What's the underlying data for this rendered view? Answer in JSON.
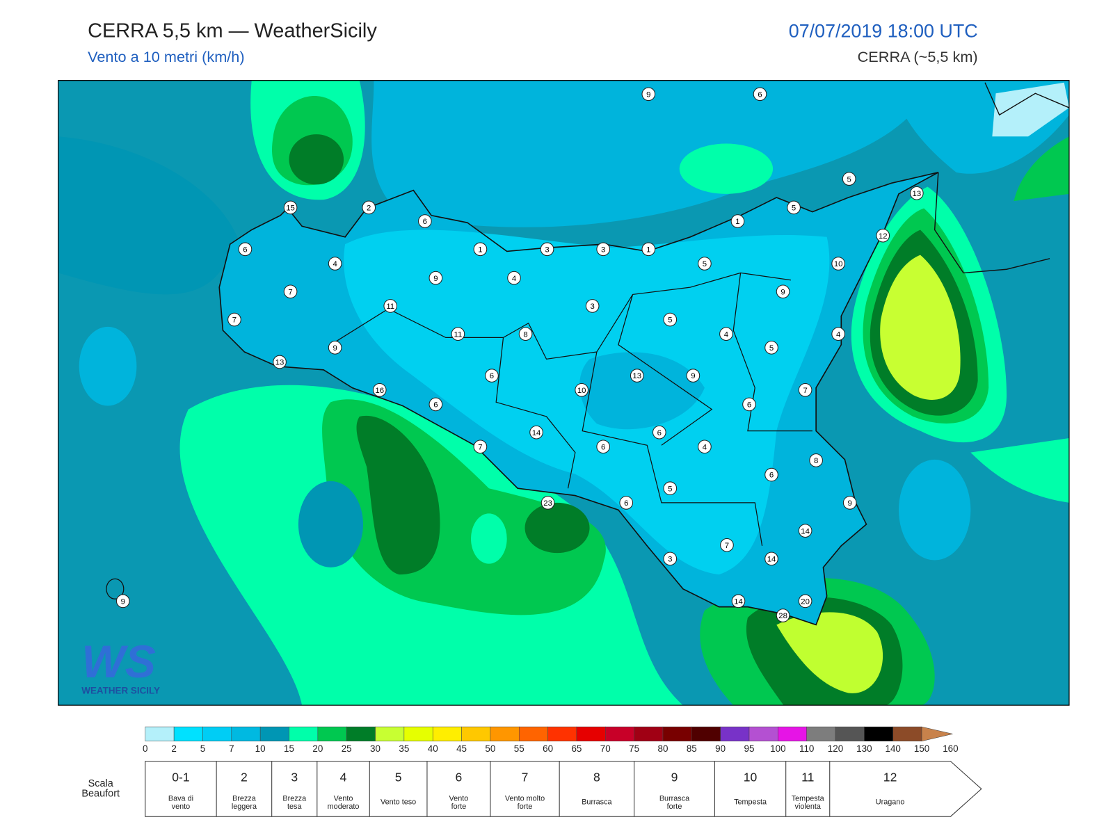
{
  "header": {
    "title": "CERRA 5,5 km — WeatherSicily",
    "subtitle": "Vento a 10 metri (km/h)",
    "datetime": "07/07/2019 18:00 UTC",
    "model": "CERRA (~5,5 km)"
  },
  "stations": [
    9,
    6,
    5,
    13,
    15,
    2,
    6,
    5,
    1,
    12,
    6,
    1,
    3,
    3,
    1,
    4,
    5,
    10,
    9,
    4,
    7,
    9,
    11,
    3,
    7,
    5,
    11,
    8,
    4,
    4,
    9,
    5,
    13,
    6,
    13,
    9,
    10,
    16,
    7,
    6,
    6,
    14,
    6,
    7,
    6,
    4,
    8,
    6,
    5,
    23,
    6,
    9,
    14,
    7,
    3,
    14,
    14,
    20,
    28,
    9
  ],
  "colorbar": {
    "ticks": [
      0,
      2,
      5,
      7,
      10,
      15,
      20,
      25,
      30,
      35,
      40,
      45,
      50,
      55,
      60,
      65,
      70,
      75,
      80,
      85,
      90,
      95,
      100,
      110,
      120,
      130,
      140,
      150,
      160
    ],
    "colors": [
      "#b4f0fa",
      "#00e1ff",
      "#00cdf5",
      "#00b9e1",
      "#0096b4",
      "#00ffaa",
      "#00c850",
      "#007d28",
      "#c8ff32",
      "#e6ff00",
      "#ffee00",
      "#ffc800",
      "#ff9600",
      "#ff6400",
      "#ff3200",
      "#e60000",
      "#c80028",
      "#a00014",
      "#780000",
      "#500000",
      "#7832c8",
      "#b450d2",
      "#e614e6",
      "#7d7d7d",
      "#555555",
      "#000000",
      "#8c4b28",
      "#c8824b"
    ]
  },
  "beaufort": {
    "label": [
      "Scala",
      "Beaufort"
    ],
    "levels": [
      {
        "force": "0-1",
        "name": [
          "Bava di",
          "vento"
        ]
      },
      {
        "force": "2",
        "name": [
          "Brezza",
          "leggera"
        ]
      },
      {
        "force": "3",
        "name": [
          "Brezza",
          "tesa"
        ]
      },
      {
        "force": "4",
        "name": [
          "Vento",
          "moderato"
        ]
      },
      {
        "force": "5",
        "name": [
          "Vento teso"
        ]
      },
      {
        "force": "6",
        "name": [
          "Vento",
          "forte"
        ]
      },
      {
        "force": "7",
        "name": [
          "Vento molto",
          "forte"
        ]
      },
      {
        "force": "8",
        "name": [
          "Burrasca"
        ]
      },
      {
        "force": "9",
        "name": [
          "Burrasca",
          "forte"
        ]
      },
      {
        "force": "10",
        "name": [
          "Tempesta"
        ]
      },
      {
        "force": "11",
        "name": [
          "Tempesta",
          "violenta"
        ]
      },
      {
        "force": "12",
        "name": [
          "Uragano"
        ]
      }
    ]
  },
  "logo": {
    "mark": "WS",
    "text": "WEATHER SICILY"
  }
}
